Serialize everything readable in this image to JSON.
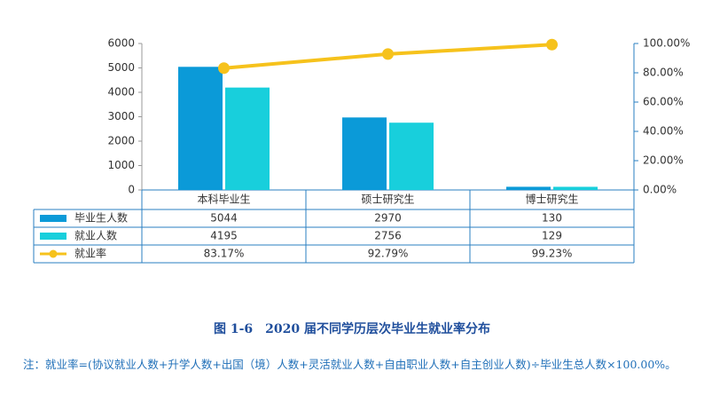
{
  "chart_data": {
    "type": "bar_line_table",
    "title": "图 1-6　2020 届不同学历层次毕业生就业率分布",
    "note": "注：就业率=(协议就业人数+升学人数+出国（境）人数+灵活就业人数+自由职业人数+自主创业人数)÷毕业生总人数×100.00%。",
    "categories": [
      "本科毕业生",
      "硕士研究生",
      "博士研究生"
    ],
    "series": [
      {
        "name": "毕业生人数",
        "type": "bar",
        "color": "#0b9ad8",
        "values": [
          5044,
          2970,
          130
        ]
      },
      {
        "name": "就业人数",
        "type": "bar",
        "color": "#18cfdc",
        "values": [
          4195,
          2756,
          129
        ]
      },
      {
        "name": "就业率",
        "type": "line",
        "axis": "y2",
        "color": "#f6c21c",
        "values": [
          83.17,
          92.79,
          99.23
        ],
        "value_labels": [
          "83.17%",
          "92.79%",
          "99.23%"
        ]
      }
    ],
    "ylim": [
      0,
      6000
    ],
    "yticks": [
      0,
      1000,
      2000,
      3000,
      4000,
      5000,
      6000
    ],
    "y2lim": [
      0,
      100
    ],
    "y2ticks": [
      {
        "value": 0,
        "label": "0.00%"
      },
      {
        "value": 20,
        "label": "20.00%"
      },
      {
        "value": 40,
        "label": "40.00%"
      },
      {
        "value": 60,
        "label": "60.00%"
      },
      {
        "value": 80,
        "label": "80.00%"
      },
      {
        "value": 100,
        "label": "100.00%"
      }
    ]
  }
}
